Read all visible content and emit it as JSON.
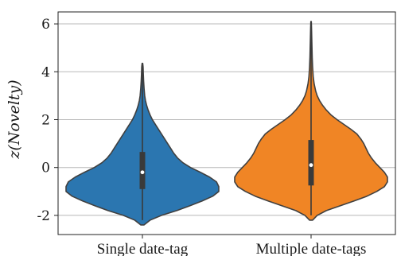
{
  "chart_data": {
    "type": "violin",
    "ylabel": "z(Novelty)",
    "xlabel": "",
    "ylim": [
      -2.8,
      6.5
    ],
    "yticks": [
      -2,
      0,
      2,
      4,
      6
    ],
    "ytick_labels": [
      "-2",
      "0",
      "2",
      "4",
      "6"
    ],
    "grid": "horizontal",
    "categories": [
      "Single date-tag",
      "Multiple date-tags"
    ],
    "series": [
      {
        "category": "Single date-tag",
        "color": "#2b76b0",
        "median": -0.2,
        "q1": -0.9,
        "q3": 0.65,
        "whisker_low": -2.2,
        "whisker_high": 4.3,
        "min": -2.4,
        "max": 4.3,
        "density": [
          [
            -2.4,
            0.02
          ],
          [
            -2.2,
            0.1
          ],
          [
            -2.0,
            0.25
          ],
          [
            -1.8,
            0.45
          ],
          [
            -1.6,
            0.62
          ],
          [
            -1.4,
            0.78
          ],
          [
            -1.2,
            0.92
          ],
          [
            -1.0,
            1.0
          ],
          [
            -0.8,
            1.0
          ],
          [
            -0.6,
            0.97
          ],
          [
            -0.4,
            0.88
          ],
          [
            -0.2,
            0.76
          ],
          [
            0.0,
            0.63
          ],
          [
            0.2,
            0.53
          ],
          [
            0.4,
            0.46
          ],
          [
            0.6,
            0.41
          ],
          [
            0.8,
            0.37
          ],
          [
            1.0,
            0.33
          ],
          [
            1.2,
            0.29
          ],
          [
            1.4,
            0.25
          ],
          [
            1.6,
            0.21
          ],
          [
            1.8,
            0.17
          ],
          [
            2.0,
            0.13
          ],
          [
            2.2,
            0.1
          ],
          [
            2.4,
            0.075
          ],
          [
            2.6,
            0.055
          ],
          [
            2.8,
            0.04
          ],
          [
            3.0,
            0.03
          ],
          [
            3.3,
            0.022
          ],
          [
            3.6,
            0.016
          ],
          [
            3.9,
            0.012
          ],
          [
            4.2,
            0.009
          ],
          [
            4.35,
            0.004
          ]
        ]
      },
      {
        "category": "Multiple date-tags",
        "color": "#f08525",
        "median": 0.1,
        "q1": -0.75,
        "q3": 1.15,
        "whisker_low": -2.0,
        "whisker_high": 6.1,
        "min": -2.2,
        "max": 6.1,
        "density": [
          [
            -2.2,
            0.02
          ],
          [
            -2.0,
            0.08
          ],
          [
            -1.8,
            0.2
          ],
          [
            -1.6,
            0.38
          ],
          [
            -1.4,
            0.56
          ],
          [
            -1.2,
            0.73
          ],
          [
            -1.0,
            0.86
          ],
          [
            -0.8,
            0.96
          ],
          [
            -0.6,
            1.0
          ],
          [
            -0.4,
            1.0
          ],
          [
            -0.2,
            0.96
          ],
          [
            0.0,
            0.9
          ],
          [
            0.2,
            0.84
          ],
          [
            0.4,
            0.79
          ],
          [
            0.6,
            0.75
          ],
          [
            0.8,
            0.72
          ],
          [
            1.0,
            0.69
          ],
          [
            1.2,
            0.65
          ],
          [
            1.4,
            0.6
          ],
          [
            1.6,
            0.52
          ],
          [
            1.8,
            0.43
          ],
          [
            2.0,
            0.34
          ],
          [
            2.2,
            0.26
          ],
          [
            2.4,
            0.2
          ],
          [
            2.6,
            0.15
          ],
          [
            2.8,
            0.11
          ],
          [
            3.0,
            0.08
          ],
          [
            3.2,
            0.06
          ],
          [
            3.5,
            0.04
          ],
          [
            3.8,
            0.028
          ],
          [
            4.2,
            0.02
          ],
          [
            4.6,
            0.015
          ],
          [
            5.0,
            0.012
          ],
          [
            5.4,
            0.009
          ],
          [
            5.8,
            0.006
          ],
          [
            6.1,
            0.003
          ]
        ]
      }
    ]
  }
}
